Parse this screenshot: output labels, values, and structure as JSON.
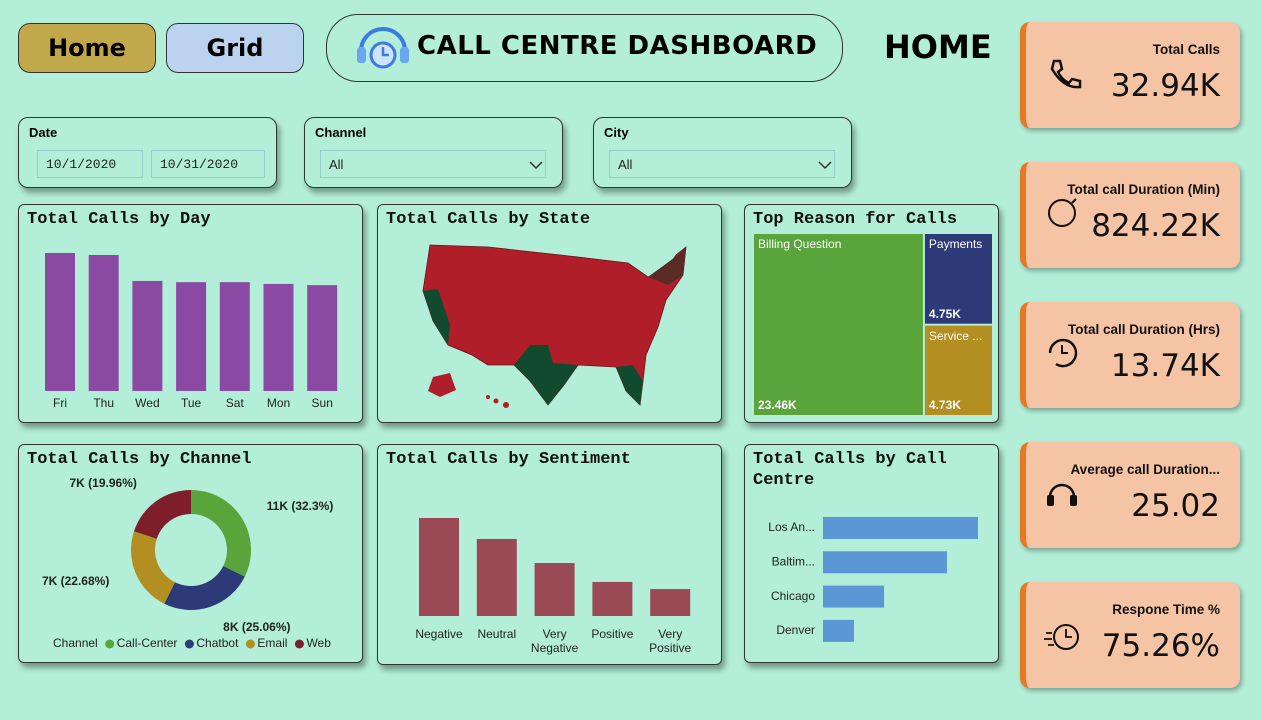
{
  "header": {
    "buttons": [
      "Home",
      "Grid"
    ],
    "title": "CALL CENTRE DASHBOARD",
    "page": "HOME"
  },
  "filters": [
    {
      "label": "Date",
      "values": [
        "10/1/2020",
        "10/31/2020"
      ]
    },
    {
      "label": "Channel",
      "value": "All"
    },
    {
      "label": "City",
      "value": "All"
    }
  ],
  "kpis": [
    {
      "label": "Total Calls",
      "value": "32.94K"
    },
    {
      "label": "Total call Duration (Min)",
      "value": "824.22K"
    },
    {
      "label": "Total call Duration (Hrs)",
      "value": "13.74K"
    },
    {
      "label": "Average call Duration...",
      "value": "25.02"
    },
    {
      "label": "Respone Time %",
      "value": "75.26%"
    }
  ],
  "chart_data": [
    {
      "type": "bar",
      "title": "Total Calls by Day",
      "categories": [
        "Fri",
        "Thu",
        "Wed",
        "Tue",
        "Sat",
        "Mon",
        "Sun"
      ],
      "values": [
        5580,
        5500,
        4450,
        4400,
        4400,
        4330,
        4280
      ],
      "color": "#8a4aa3"
    },
    {
      "type": "map",
      "title": "Total Calls by State"
    },
    {
      "type": "treemap",
      "title": "Top Reason for Calls",
      "categories": [
        "Billing Question",
        "Payments",
        "Service ..."
      ],
      "values": [
        23460,
        4750,
        4730
      ],
      "value_labels": [
        "23.46K",
        "4.75K",
        "4.73K"
      ],
      "colors": [
        "#5aa43c",
        "#2e3a78",
        "#b38f22"
      ]
    },
    {
      "type": "donut",
      "title": "Total Calls by Channel",
      "legend_title": "Channel",
      "categories": [
        "Call-Center",
        "Chatbot",
        "Email",
        "Web"
      ],
      "values": [
        10640,
        8255,
        7471,
        6575
      ],
      "value_labels": [
        "11K (32.3%)",
        "8K (25.06%)",
        "7K (22.68%)",
        "7K (19.96%)"
      ],
      "colors": [
        "#5aa43c",
        "#2e3a78",
        "#b38f22",
        "#7e1e2a"
      ]
    },
    {
      "type": "bar",
      "title": "Total Calls by Sentiment",
      "categories": [
        "Negative",
        "Neutral",
        "Very Negative",
        "Positive",
        "Very Positive"
      ],
      "values": [
        11170,
        8780,
        6040,
        3880,
        3070
      ],
      "color": "#9a4a55"
    },
    {
      "type": "bar",
      "orientation": "horizontal",
      "title": "Total Calls by Call Centre",
      "categories": [
        "Los An...",
        "Baltim...",
        "Chicago",
        "Denver"
      ],
      "values": [
        13760,
        11010,
        5420,
        2750
      ],
      "color": "#5b97d5"
    }
  ]
}
